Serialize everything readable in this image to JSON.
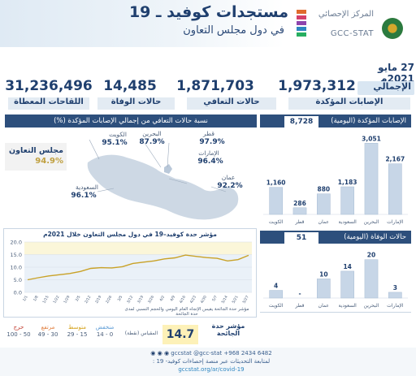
{
  "header": {
    "title": "مستجدات كوفيد ـ 19",
    "subtitle": "في دول مجلس التعاون",
    "org_line1": "المركز الإحصائي",
    "org_line2": "GCC-STAT"
  },
  "date": "27 مايو 2021م",
  "totals": {
    "label": "الإجمالي",
    "confirmed": {
      "value": "1,973,312",
      "label": "الإصابات المؤكدة"
    },
    "recovered": {
      "value": "1,871,703",
      "label": "حالات التعافي"
    },
    "deaths": {
      "value": "14,485",
      "label": "حالات الوفاة"
    },
    "vaccines": {
      "value": "31,236,496",
      "label": "اللقاحات المعطاة"
    }
  },
  "map": {
    "title": "نسبة حالات التعافي من إجمالي الإصابات المؤكدة (%)",
    "gcc_label": "مجلس التعاون",
    "gcc_value": "94.9%",
    "countries": [
      {
        "name": "الكويت",
        "value": "95.1%"
      },
      {
        "name": "البحرين",
        "value": "87.9%"
      },
      {
        "name": "قطر",
        "value": "97.9%"
      },
      {
        "name": "الإمارات",
        "value": "96.4%"
      },
      {
        "name": "عمان",
        "value": "92.2%"
      },
      {
        "name": "السعودية",
        "value": "96.1%"
      }
    ]
  },
  "daily_confirmed": {
    "title": "الإصابات المؤكدة (اليومية)",
    "total": "8,728"
  },
  "daily_deaths": {
    "title": "حالات الوفاة (اليومية)",
    "total": "51"
  },
  "trend": {
    "title": "مؤشر حدة كوفيد–19 في دول مجلس التعاون خلال 2021م",
    "note_line1": "مؤشر حدة الجائحة يقيس الإتجاه العام اليومي والحجم النسبي لمدى حدة الجائحة",
    "y_ticks": [
      "20.0",
      "15.0",
      "10.0",
      "5.0",
      "0.0"
    ]
  },
  "severity": {
    "label": "مؤشر حدة الجائحة",
    "value": "14.7",
    "scale_label": "المقياس (نقطة)",
    "levels": [
      {
        "name": "منخفض",
        "range": "0 - 14",
        "color": "#5b9bd5"
      },
      {
        "name": "متوسط",
        "range": "15 - 29",
        "color": "#f0c419"
      },
      {
        "name": "مرتفع",
        "range": "30 - 49",
        "color": "#e07b39"
      },
      {
        "name": "حرج",
        "range": "50 - 100",
        "color": "#c0392b"
      }
    ]
  },
  "footer": {
    "handles": "gccstat   @gcc-stat   +968 2434 6482",
    "line1": "لمتابعة التحديثات عبر منصة إحصاءات كوفيد- 19 :",
    "url": "gccstat.org/ar/covid-19"
  },
  "chart_data": [
    {
      "type": "bar",
      "title": "الإصابات المؤكدة (اليومية)",
      "categories": [
        "الكويت",
        "قطر",
        "عمان",
        "السعودية",
        "البحرين",
        "الإمارات"
      ],
      "values": [
        1160,
        286,
        880,
        1183,
        3051,
        2167
      ],
      "value_labels": [
        "1,160",
        "286",
        "880",
        "1,183",
        "3,051",
        "2,167"
      ],
      "ylim": [
        0,
        3200
      ]
    },
    {
      "type": "bar",
      "title": "حالات الوفاة (اليومية)",
      "categories": [
        "الكويت",
        "قطر",
        "عمان",
        "السعودية",
        "البحرين",
        "الإمارات"
      ],
      "values": [
        4,
        0,
        10,
        14,
        20,
        3
      ],
      "value_labels": [
        "4",
        "-",
        "10",
        "14",
        "20",
        "3"
      ],
      "ylim": [
        0,
        22
      ]
    },
    {
      "type": "line",
      "title": "مؤشر حدة كوفيد–19 في دول مجلس التعاون خلال 2021م",
      "x": [
        "1/1",
        "1/8",
        "1/15",
        "1/22",
        "1/29",
        "2/5",
        "2/12",
        "2/19",
        "2/26",
        "3/5",
        "3/12",
        "3/19",
        "3/26",
        "4/2",
        "4/9",
        "4/16",
        "4/23",
        "4/30",
        "5/7",
        "5/14",
        "5/21",
        "5/27"
      ],
      "values": [
        5.0,
        5.8,
        6.5,
        7.0,
        7.5,
        8.3,
        9.5,
        9.8,
        9.7,
        10.2,
        11.5,
        12.0,
        12.5,
        13.3,
        13.7,
        14.8,
        14.3,
        13.8,
        13.5,
        12.5,
        13.0,
        14.7
      ],
      "ylim": [
        0,
        20
      ],
      "bands": [
        {
          "from": 0,
          "to": 15,
          "color": "#eaf1f8"
        },
        {
          "from": 15,
          "to": 20,
          "color": "#fbf6d9"
        }
      ]
    }
  ]
}
